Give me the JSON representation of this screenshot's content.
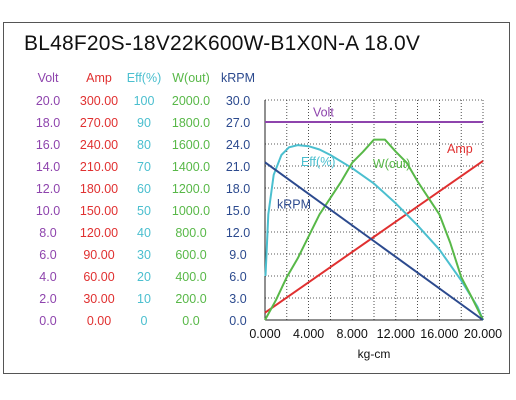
{
  "chart_data": {
    "type": "line",
    "title": "BL48F20S-18V22K600W-B1X0N-A   18.0V",
    "xlabel": "kg-cm",
    "xlim": [
      0,
      20
    ],
    "x_ticks": [
      "0.000",
      "4.000",
      "8.000",
      "12.000",
      "16.000",
      "20.000"
    ],
    "grid": true,
    "axes": [
      {
        "name": "Volt",
        "color": "#8e44ad",
        "ticks": [
          "0.0",
          "2.0",
          "4.0",
          "6.0",
          "8.0",
          "10.0",
          "12.0",
          "14.0",
          "16.0",
          "18.0",
          "20.0"
        ]
      },
      {
        "name": "Amp",
        "color": "#e03030",
        "ticks": [
          "0.00",
          "30.00",
          "60.00",
          "90.00",
          "120.00",
          "150.00",
          "180.00",
          "210.00",
          "240.00",
          "270.00",
          "300.00"
        ]
      },
      {
        "name": "Eff(%)",
        "color": "#4bbfcf",
        "ticks": [
          "0",
          "10",
          "20",
          "30",
          "40",
          "50",
          "60",
          "70",
          "80",
          "90",
          "100"
        ]
      },
      {
        "name": "W(out)",
        "color": "#58b848",
        "ticks": [
          "0.0",
          "200.0",
          "400.0",
          "600.0",
          "800.0",
          "1000.0",
          "1200.0",
          "1400.0",
          "1600.0",
          "1800.0",
          "2000.0"
        ]
      },
      {
        "name": "kRPM",
        "color": "#2c4a8e",
        "ticks": [
          "0.0",
          "3.0",
          "6.0",
          "9.0",
          "12.0",
          "15.0",
          "18.0",
          "21.0",
          "24.0",
          "27.0",
          "30.0"
        ]
      }
    ],
    "series": [
      {
        "name": "Volt",
        "color": "#8e44ad",
        "axis": 0,
        "x": [
          0,
          20
        ],
        "y": [
          18.0,
          18.0
        ]
      },
      {
        "name": "Amp",
        "color": "#e03030",
        "axis": 1,
        "x": [
          0,
          20
        ],
        "y": [
          10,
          217
        ]
      },
      {
        "name": "Eff(%)",
        "color": "#4bbfcf",
        "axis": 2,
        "x": [
          0.05,
          0.3,
          0.8,
          1.5,
          2.2,
          3.0,
          4.0,
          5.0,
          6.0,
          8.0,
          10.0,
          12.0,
          14.0,
          16.0,
          18.0,
          19.5,
          20.0
        ],
        "y": [
          20,
          48,
          66,
          75,
          78.5,
          79.5,
          79,
          77.5,
          75,
          69,
          62,
          53,
          43,
          32,
          18,
          6,
          0
        ]
      },
      {
        "name": "W(out)",
        "color": "#58b848",
        "axis": 3,
        "x": [
          0,
          1,
          2,
          3,
          4,
          5,
          6,
          7,
          8,
          9,
          10,
          11,
          12,
          13,
          14,
          15,
          16,
          17,
          18,
          19,
          20
        ],
        "y": [
          0,
          180,
          390,
          560,
          760,
          960,
          1110,
          1260,
          1430,
          1530,
          1640,
          1640,
          1530,
          1430,
          1260,
          1110,
          960,
          700,
          390,
          200,
          0
        ]
      },
      {
        "name": "kRPM",
        "color": "#2c4a8e",
        "axis": 4,
        "x": [
          0,
          20
        ],
        "y": [
          21.5,
          0
        ]
      }
    ],
    "annotations": [
      {
        "text": "Volt",
        "x": 4.4,
        "y_axis": 0,
        "y": 18.5
      },
      {
        "text": "Amp",
        "x": 16.7,
        "y_axis": 1,
        "y": 228
      },
      {
        "text": "Eff(%)",
        "x": 3.3,
        "y_axis": 2,
        "y": 70
      },
      {
        "text": "W(out)",
        "x": 9.9,
        "y_axis": 3,
        "y": 1380
      },
      {
        "text": "kRPM",
        "x": 1.1,
        "y_axis": 4,
        "y": 15.2
      }
    ]
  }
}
